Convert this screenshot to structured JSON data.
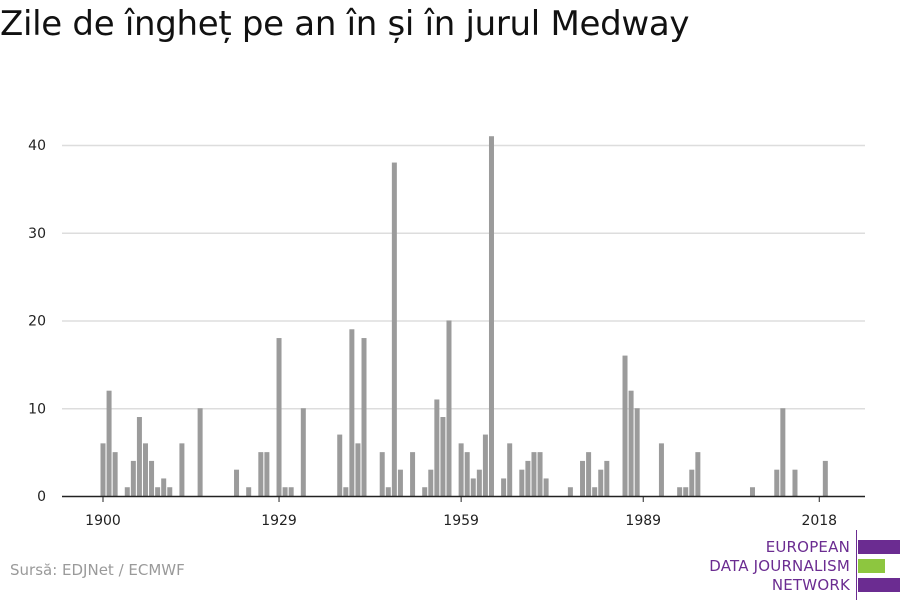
{
  "title": "Zile de îngheț pe an în și în jurul Medway",
  "source": "Sursă: EDJNet / ECMWF",
  "logo": {
    "lines": [
      "EUROPEAN",
      "DATA JOURNALISM",
      "NETWORK"
    ],
    "colors": {
      "purple": "#6b2c91",
      "green": "#8dc63f"
    }
  },
  "colors": {
    "bar": "#9b9b9b",
    "grid": "#dddddd",
    "axis": "#222222"
  },
  "chart_data": {
    "type": "bar",
    "title": "Zile de îngheț pe an în și în jurul Medway",
    "xlabel": "",
    "ylabel": "",
    "x_ticks": [
      1900,
      1929,
      1959,
      1989,
      2018
    ],
    "y_ticks": [
      0,
      10,
      20,
      30,
      40
    ],
    "ylim": [
      0,
      43
    ],
    "xlim": [
      1900,
      2020
    ],
    "grid": true,
    "x": [
      1900,
      1901,
      1902,
      1903,
      1904,
      1905,
      1906,
      1907,
      1908,
      1909,
      1910,
      1911,
      1912,
      1913,
      1914,
      1915,
      1916,
      1917,
      1918,
      1919,
      1920,
      1921,
      1922,
      1923,
      1924,
      1925,
      1926,
      1927,
      1928,
      1929,
      1930,
      1931,
      1932,
      1933,
      1934,
      1935,
      1936,
      1937,
      1938,
      1939,
      1940,
      1941,
      1942,
      1943,
      1944,
      1945,
      1946,
      1947,
      1948,
      1949,
      1950,
      1951,
      1952,
      1953,
      1954,
      1955,
      1956,
      1957,
      1958,
      1959,
      1960,
      1961,
      1962,
      1963,
      1964,
      1965,
      1966,
      1967,
      1968,
      1969,
      1970,
      1971,
      1972,
      1973,
      1974,
      1975,
      1976,
      1977,
      1978,
      1979,
      1980,
      1981,
      1982,
      1983,
      1984,
      1985,
      1986,
      1987,
      1988,
      1989,
      1990,
      1991,
      1992,
      1993,
      1994,
      1995,
      1996,
      1997,
      1998,
      1999,
      2000,
      2001,
      2002,
      2003,
      2004,
      2005,
      2006,
      2007,
      2008,
      2009,
      2010,
      2011,
      2012,
      2013,
      2014,
      2015,
      2016,
      2017,
      2018,
      2019
    ],
    "values": [
      6,
      12,
      5,
      0,
      1,
      4,
      9,
      6,
      4,
      1,
      2,
      1,
      0,
      6,
      0,
      0,
      10,
      0,
      0,
      0,
      0,
      0,
      3,
      0,
      1,
      0,
      5,
      5,
      0,
      18,
      1,
      1,
      0,
      10,
      0,
      0,
      0,
      0,
      0,
      7,
      1,
      19,
      6,
      18,
      0,
      0,
      5,
      1,
      38,
      3,
      0,
      5,
      0,
      1,
      3,
      11,
      9,
      20,
      0,
      6,
      5,
      2,
      3,
      7,
      41,
      0,
      2,
      6,
      0,
      3,
      4,
      5,
      5,
      2,
      0,
      0,
      0,
      1,
      0,
      4,
      5,
      1,
      3,
      4,
      0,
      0,
      16,
      12,
      10,
      0,
      0,
      0,
      6,
      0,
      0,
      1,
      1,
      3,
      5,
      0,
      0,
      0,
      0,
      0,
      0,
      0,
      0,
      1,
      0,
      0,
      0,
      3,
      10,
      0,
      3,
      0,
      0,
      0,
      0,
      4
    ]
  }
}
